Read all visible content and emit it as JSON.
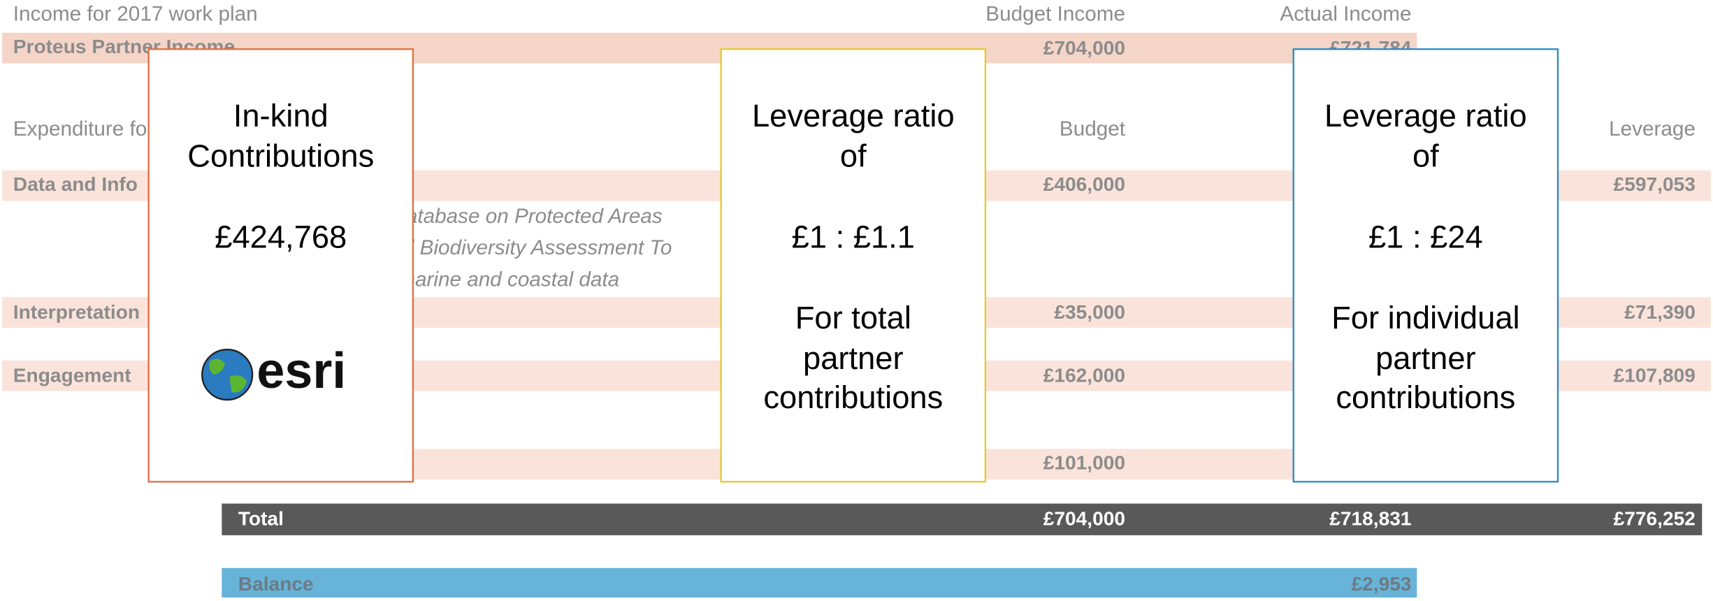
{
  "income_header": {
    "label": "Income for 2017 work plan",
    "budget": "Budget Income",
    "actual": "Actual Income"
  },
  "income_row": {
    "label": "Proteus Partner Income",
    "budget": "£704,000",
    "actual": "£721,784"
  },
  "expenditure_header": {
    "label": "Expenditure fo",
    "budget": "Budget",
    "leverage": "Leverage"
  },
  "rows": [
    {
      "label": "Data and Info",
      "budget": "£406,000",
      "leverage": "£597,053"
    },
    {
      "label": "Interpretation",
      "budget": "£35,000",
      "leverage": "£71,390"
    },
    {
      "label": "Engagement",
      "budget": "£162,000",
      "leverage": "£107,809"
    },
    {
      "budget": "£101,000"
    }
  ],
  "sub_items": [
    "d Database on Protected Areas",
    "ated Biodiversity Assessment To",
    "er marine and coastal data"
  ],
  "total": {
    "label": "Total",
    "budget": "£704,000",
    "actual": "£718,831",
    "leverage": "£776,252"
  },
  "balance": {
    "label": "Balance",
    "actual": "£2,953"
  },
  "cards": [
    {
      "lines": [
        "In-kind",
        "Contributions",
        "£424,768"
      ],
      "logo": "esri"
    },
    {
      "lines": [
        "Leverage ratio",
        "of",
        "£1 : £1.1",
        "For total",
        "partner",
        "contributions"
      ]
    },
    {
      "lines": [
        "Leverage ratio",
        "of",
        "£1 : £24",
        "For individual",
        "partner",
        "contributions"
      ]
    }
  ]
}
